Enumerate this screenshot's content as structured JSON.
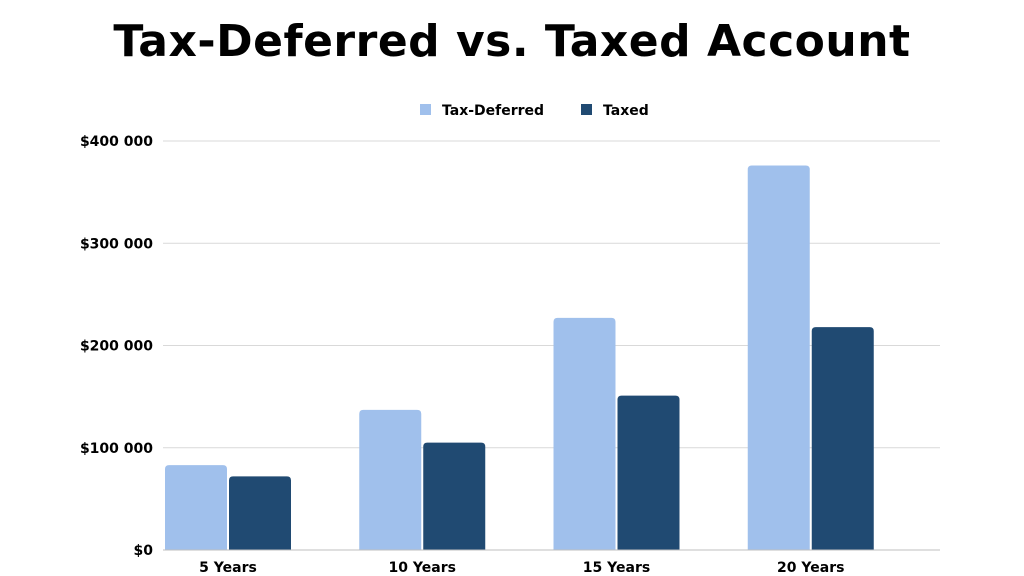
{
  "chart_data": {
    "type": "bar",
    "title": "Tax-Deferred vs. Taxed Account",
    "xlabel": "",
    "ylabel": "",
    "categories": [
      "5 Years",
      "10 Years",
      "15 Years",
      "20 Years"
    ],
    "series": [
      {
        "name": "Tax-Deferred",
        "color": "#a0c0ec",
        "values": [
          83000,
          137000,
          227000,
          376000
        ]
      },
      {
        "name": "Taxed",
        "color": "#204a72",
        "values": [
          72000,
          105000,
          151000,
          218000
        ]
      }
    ],
    "ylim": [
      0,
      400000
    ],
    "yticks": [
      0,
      100000,
      200000,
      300000,
      400000
    ],
    "ytick_labels": [
      "$0",
      "$100 000",
      "$200 000",
      "$300 000",
      "$400 000"
    ],
    "grid": true,
    "legend_position": "top-center"
  }
}
